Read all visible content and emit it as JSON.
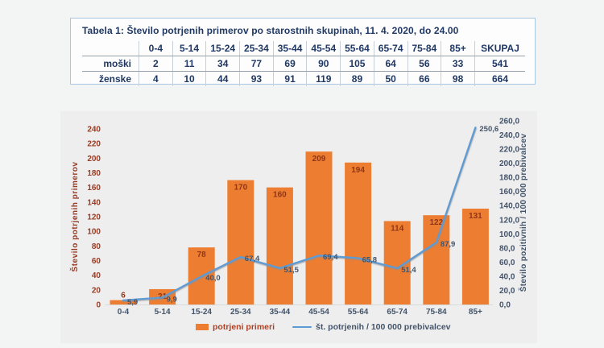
{
  "table": {
    "title": "Tabela 1: Število potrjenih primerov po starostnih skupinah, 11. 4. 2020, do 24.00",
    "col_headers": [
      "",
      "0-4",
      "5-14",
      "15-24",
      "25-34",
      "35-44",
      "45-54",
      "55-64",
      "65-74",
      "75-84",
      "85+",
      "SKUPAJ"
    ],
    "rows": [
      {
        "label": "moški",
        "values": [
          "2",
          "11",
          "34",
          "77",
          "69",
          "90",
          "105",
          "64",
          "56",
          "33",
          "541"
        ]
      },
      {
        "label": "ženske",
        "values": [
          "4",
          "10",
          "44",
          "93",
          "91",
          "119",
          "89",
          "50",
          "66",
          "98",
          "664"
        ]
      }
    ],
    "text_color": "#1f3864",
    "border_color": "#a9c7e4"
  },
  "chart_data": {
    "type": "bar+line dual-axis",
    "categories": [
      "0-4",
      "5-14",
      "15-24",
      "25-34",
      "35-44",
      "45-54",
      "55-64",
      "65-74",
      "75-84",
      "85+"
    ],
    "series": [
      {
        "name": "potrjeni primeri",
        "type": "bar",
        "axis": "left",
        "color": "#ed7d31",
        "label_color": "#8f3618",
        "values": [
          6,
          21,
          78,
          170,
          160,
          209,
          194,
          114,
          122,
          131
        ],
        "labels": [
          "6",
          "21",
          "78",
          "170",
          "160",
          "209",
          "194",
          "114",
          "122",
          "131"
        ]
      },
      {
        "name": "št. potrjenih / 100 000 prebivalcev",
        "type": "line",
        "axis": "right",
        "color": "#5b9bd5",
        "label_color": "#44546a",
        "values": [
          5.9,
          9.9,
          40.0,
          67.4,
          51.5,
          69.4,
          65.8,
          51.4,
          87.9,
          250.6
        ],
        "labels": [
          "5,9",
          "9,9",
          "40,0",
          "67,4",
          "51,5",
          "69,4",
          "65,8",
          "51,4",
          "87,9",
          "250,6"
        ]
      }
    ],
    "left_axis": {
      "title": "Število potrjenih primerov",
      "min": 0,
      "max": 240,
      "step": 20,
      "color": "#9c3a22",
      "decimals": 0
    },
    "right_axis": {
      "title": "Število pozitivnih / 100 000 prebivalcev",
      "min": 0,
      "max": 260,
      "step": 20,
      "color": "#44546a",
      "decimals": 1
    },
    "category_color": "#44546a",
    "grid": false,
    "legend_position": "bottom",
    "legend": [
      {
        "label": "potrjeni primeri",
        "marker": "square",
        "color": "#ed7d31",
        "text_color": "#b03f22"
      },
      {
        "label": "št. potrjenih / 100 000 prebivalcev",
        "marker": "line",
        "color": "#5b9bd5",
        "text_color": "#44546a"
      }
    ]
  }
}
